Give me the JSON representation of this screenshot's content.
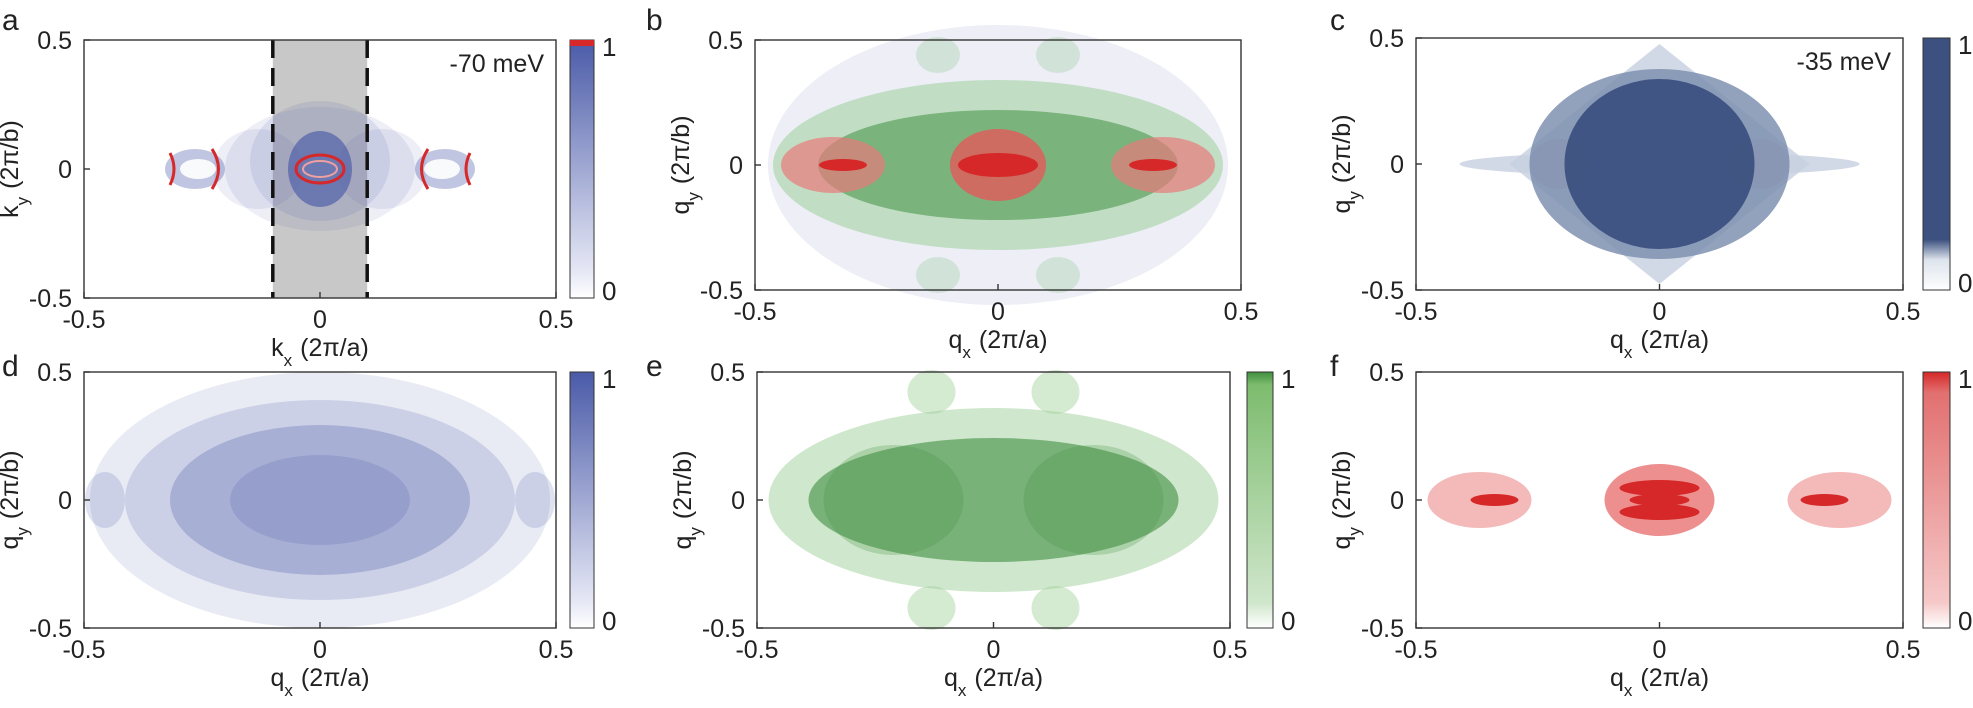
{
  "panel_labels": [
    "a",
    "b",
    "c",
    "d",
    "e",
    "f"
  ],
  "colors": {
    "blue": "#4a5aa8",
    "navy": "#3c5180",
    "green": "#3f8f3f",
    "red": "#d62828",
    "gray_band": "#c8c8c8"
  },
  "chart_data": [
    {
      "id": "a",
      "type": "heatmap",
      "xlabel": "k",
      "xlabel_sub": "x",
      "xlabel_unit": "(2π/a)",
      "ylabel": "k",
      "ylabel_sub": "y",
      "ylabel_unit": "(2π/b)",
      "xlim": [
        -0.5,
        0.5
      ],
      "ylim": [
        -0.5,
        0.5
      ],
      "xticks": [
        "-0.5",
        "0",
        "0.5"
      ],
      "yticks": [
        "-0.5",
        "0",
        "0.5"
      ],
      "annotation": "-70 meV",
      "band_kx": [
        -0.1,
        0.1
      ],
      "colorbar": {
        "min": "0",
        "max": "1",
        "color": "#4a5aa8",
        "top_color": "#d62828"
      }
    },
    {
      "id": "b",
      "type": "heatmap",
      "xlabel": "q",
      "xlabel_sub": "x",
      "xlabel_unit": "(2π/a)",
      "ylabel": "q",
      "ylabel_sub": "y",
      "ylabel_unit": "(2π/b)",
      "xlim": [
        -0.5,
        0.5
      ],
      "ylim": [
        -0.5,
        0.5
      ],
      "xticks": [
        "-0.5",
        "0",
        "0.5"
      ],
      "yticks": [
        "-0.5",
        "0",
        "0.5"
      ]
    },
    {
      "id": "c",
      "type": "heatmap",
      "xlabel": "q",
      "xlabel_sub": "x",
      "xlabel_unit": "(2π/a)",
      "ylabel": "q",
      "ylabel_sub": "y",
      "ylabel_unit": "(2π/b)",
      "xlim": [
        -0.5,
        0.5
      ],
      "ylim": [
        -0.5,
        0.5
      ],
      "xticks": [
        "-0.5",
        "0",
        "0.5"
      ],
      "yticks": [
        "-0.5",
        "0",
        "0.5"
      ],
      "annotation": "-35 meV",
      "colorbar": {
        "min": "0",
        "max": "1",
        "color": "#3c5180"
      }
    },
    {
      "id": "d",
      "type": "heatmap",
      "xlabel": "q",
      "xlabel_sub": "x",
      "xlabel_unit": "(2π/a)",
      "ylabel": "q",
      "ylabel_sub": "y",
      "ylabel_unit": "(2π/b)",
      "xlim": [
        -0.5,
        0.5
      ],
      "ylim": [
        -0.5,
        0.5
      ],
      "xticks": [
        "-0.5",
        "0",
        "0.5"
      ],
      "yticks": [
        "-0.5",
        "0",
        "0.5"
      ],
      "colorbar": {
        "min": "0",
        "max": "1",
        "color": "#4a5aa8"
      }
    },
    {
      "id": "e",
      "type": "heatmap",
      "xlabel": "q",
      "xlabel_sub": "x",
      "xlabel_unit": "(2π/a)",
      "ylabel": "q",
      "ylabel_sub": "y",
      "ylabel_unit": "(2π/b)",
      "xlim": [
        -0.5,
        0.5
      ],
      "ylim": [
        -0.5,
        0.5
      ],
      "xticks": [
        "-0.5",
        "0",
        "0.5"
      ],
      "yticks": [
        "-0.5",
        "0",
        "0.5"
      ],
      "colorbar": {
        "min": "0",
        "max": "1",
        "color": "#3f8f3f"
      }
    },
    {
      "id": "f",
      "type": "heatmap",
      "xlabel": "q",
      "xlabel_sub": "x",
      "xlabel_unit": "(2π/a)",
      "ylabel": "q",
      "ylabel_sub": "y",
      "ylabel_unit": "(2π/b)",
      "xlim": [
        -0.5,
        0.5
      ],
      "ylim": [
        -0.5,
        0.5
      ],
      "xticks": [
        "-0.5",
        "0",
        "0.5"
      ],
      "yticks": [
        "-0.5",
        "0",
        "0.5"
      ],
      "colorbar": {
        "min": "0",
        "max": "1",
        "color": "#d62828"
      }
    }
  ]
}
